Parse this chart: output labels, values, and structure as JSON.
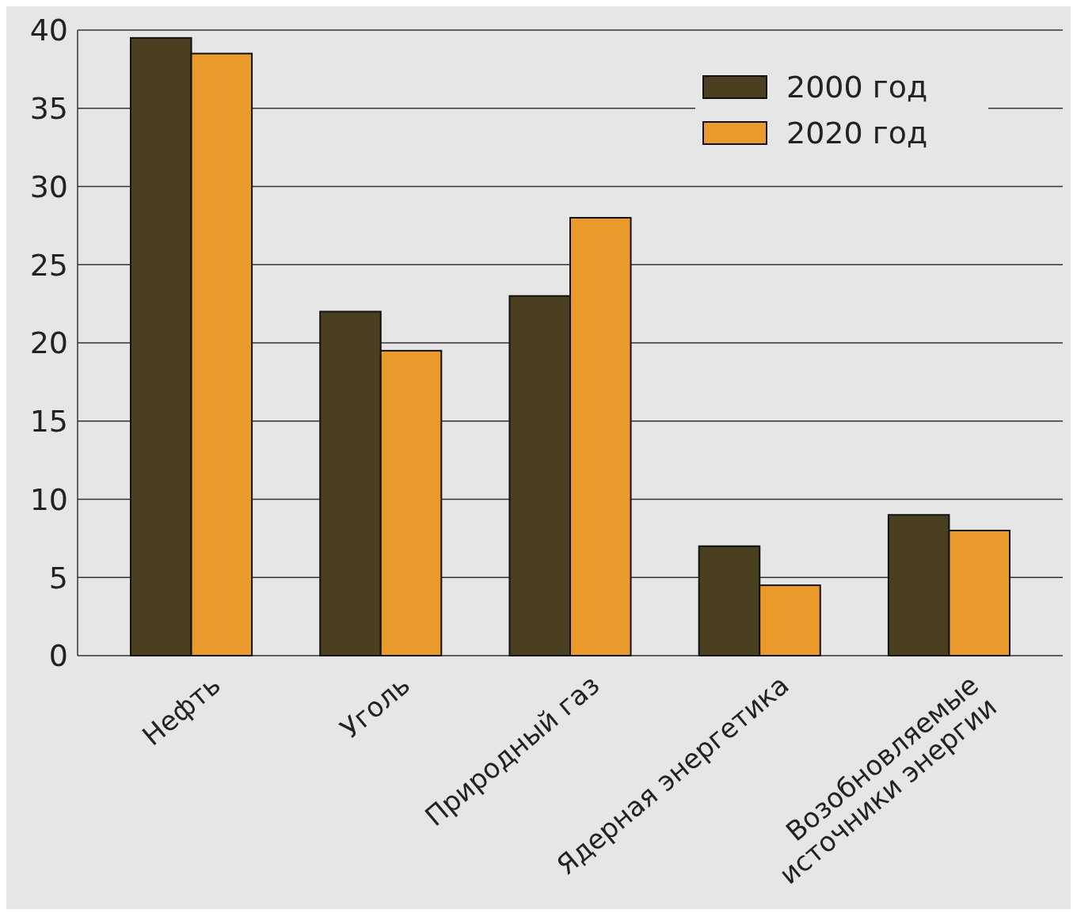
{
  "chart_data": {
    "type": "bar",
    "categories": [
      "Нефть",
      "Уголь",
      "Природный газ",
      "Ядерная энергетика",
      "Возобновляемые\nисточники энергии"
    ],
    "series": [
      {
        "name": "2000 год",
        "color": "#4a3f1f",
        "values": [
          39.5,
          22,
          23,
          7,
          9
        ]
      },
      {
        "name": "2020 год",
        "color": "#e99a2b",
        "values": [
          38.5,
          19.5,
          28,
          4.5,
          8
        ]
      }
    ],
    "ylim": [
      0,
      40
    ],
    "yticks": [
      0,
      5,
      10,
      15,
      20,
      25,
      30,
      35,
      40
    ],
    "grid": "y",
    "legend": "top right"
  }
}
